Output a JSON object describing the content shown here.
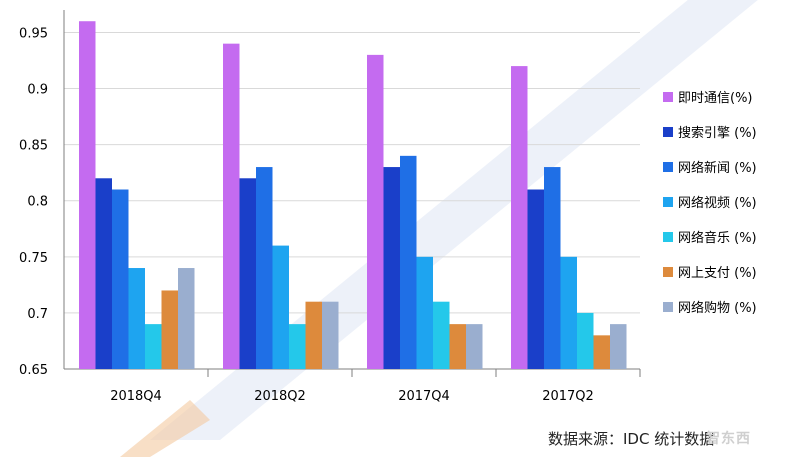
{
  "chart_data": {
    "type": "bar",
    "categories": [
      "2018Q4",
      "2018Q2",
      "2017Q4",
      "2017Q2"
    ],
    "series": [
      {
        "name": "即时通信(%)",
        "color": "#c46bf0",
        "values": [
          0.96,
          0.94,
          0.93,
          0.92
        ]
      },
      {
        "name": "搜索引擎 (%)",
        "color": "#1a3fc9",
        "values": [
          0.82,
          0.82,
          0.83,
          0.81
        ]
      },
      {
        "name": "网络新闻 (%)",
        "color": "#1f6fe6",
        "values": [
          0.81,
          0.83,
          0.84,
          0.83
        ]
      },
      {
        "name": "网络视频 (%)",
        "color": "#1ea4f0",
        "values": [
          0.74,
          0.76,
          0.75,
          0.75
        ]
      },
      {
        "name": "网络音乐 (%)",
        "color": "#24c8ea",
        "values": [
          0.69,
          0.69,
          0.71,
          0.7
        ]
      },
      {
        "name": "网上支付 (%)",
        "color": "#dd8a3c",
        "values": [
          0.72,
          0.71,
          0.69,
          0.68
        ]
      },
      {
        "name": "网络购物 (%)",
        "color": "#9aaecf",
        "values": [
          0.74,
          0.71,
          0.69,
          0.69
        ]
      }
    ],
    "ylim": [
      0.65,
      0.97
    ],
    "yticks": [
      "0.65",
      "0.7",
      "0.75",
      "0.8",
      "0.85",
      "0.9",
      "0.95"
    ],
    "grid": true,
    "legend": "right"
  },
  "source_text": "数据来源：IDC 统计数据",
  "watermark_logo": "智东西"
}
